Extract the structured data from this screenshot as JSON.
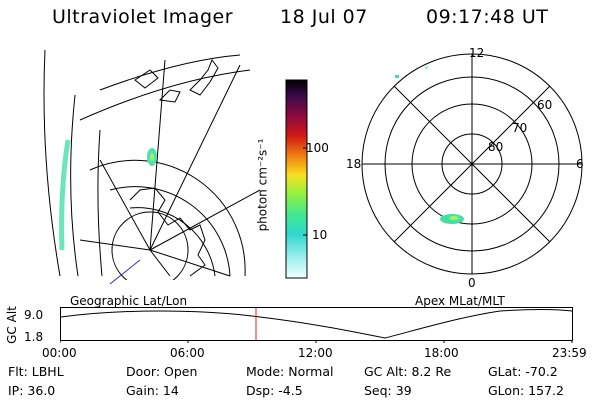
{
  "header": {
    "title": "Ultraviolet Imager",
    "date": "18 Jul 07",
    "time": "09:17:48 UT"
  },
  "colorbar": {
    "unit_label": "photon cm⁻²s⁻¹",
    "ticks": [
      "100",
      "10"
    ],
    "colors": [
      "#000000",
      "#2a0a3a",
      "#5a0a6a",
      "#7a1040",
      "#a01030",
      "#c8181a",
      "#e04010",
      "#f07a10",
      "#f8b010",
      "#f0e020",
      "#c8f030",
      "#80f040",
      "#40e880",
      "#30e0c0",
      "#60e8e8",
      "#a0f0f0",
      "#e8ffff"
    ]
  },
  "maps": {
    "left_caption": "Geographic Lat/Lon",
    "right_caption": "Apex MLat/MLT",
    "polar": {
      "mlt_labels": [
        "12",
        "18",
        "6",
        "0"
      ],
      "lat_labels": [
        "60",
        "70",
        "80"
      ]
    }
  },
  "altitude_plot": {
    "axis_label": "GC Alt",
    "y_ticks": [
      "9.0",
      "1.8"
    ],
    "x_ticks": [
      "00:00",
      "06:00",
      "12:00",
      "18:00",
      "23:59"
    ],
    "marker_color": "#e02020"
  },
  "info": {
    "filter": "Flt:  LBHL",
    "ip": "IP:  36.0",
    "door": "Door:  Open",
    "gain": "Gain:  14",
    "mode": "Mode:  Normal",
    "dsp": "Dsp:     -4.5",
    "gc_alt": "GC Alt:  8.2 Re",
    "seq": "Seq:  39",
    "glat": "GLat:  -70.2",
    "glon": "GLon:  157.2"
  }
}
